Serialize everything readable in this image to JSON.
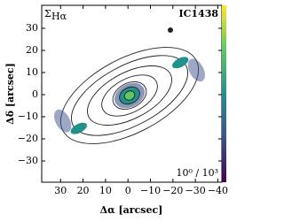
{
  "chart_data": {
    "type": "map",
    "xlabel": "Δα [arcsec]",
    "ylabel": "Δδ [arcsec]",
    "annotations": {
      "quantity": "Σ",
      "quantity_sub": "Hα",
      "object": "IC1438",
      "colorbar_range": "10⁰ / 10³"
    },
    "xlim": [
      38.4,
      -41.8
    ],
    "ylim": [
      -39.6,
      40.4
    ],
    "xticks": [
      30,
      20,
      10,
      0,
      {
        "value": -10,
        "label": "−10"
      },
      {
        "value": -20,
        "label": "−20"
      },
      {
        "value": -30,
        "label": "−30"
      },
      {
        "value": -40,
        "label": "−40"
      }
    ],
    "yticks": [
      30,
      20,
      10,
      0,
      {
        "value": -10,
        "label": "−10"
      },
      {
        "value": -20,
        "label": "−20"
      },
      {
        "value": -30,
        "label": "−30"
      }
    ],
    "colormap": [
      "#440154",
      "#3b528b",
      "#21918c",
      "#5ec962",
      "#fde725"
    ]
  }
}
